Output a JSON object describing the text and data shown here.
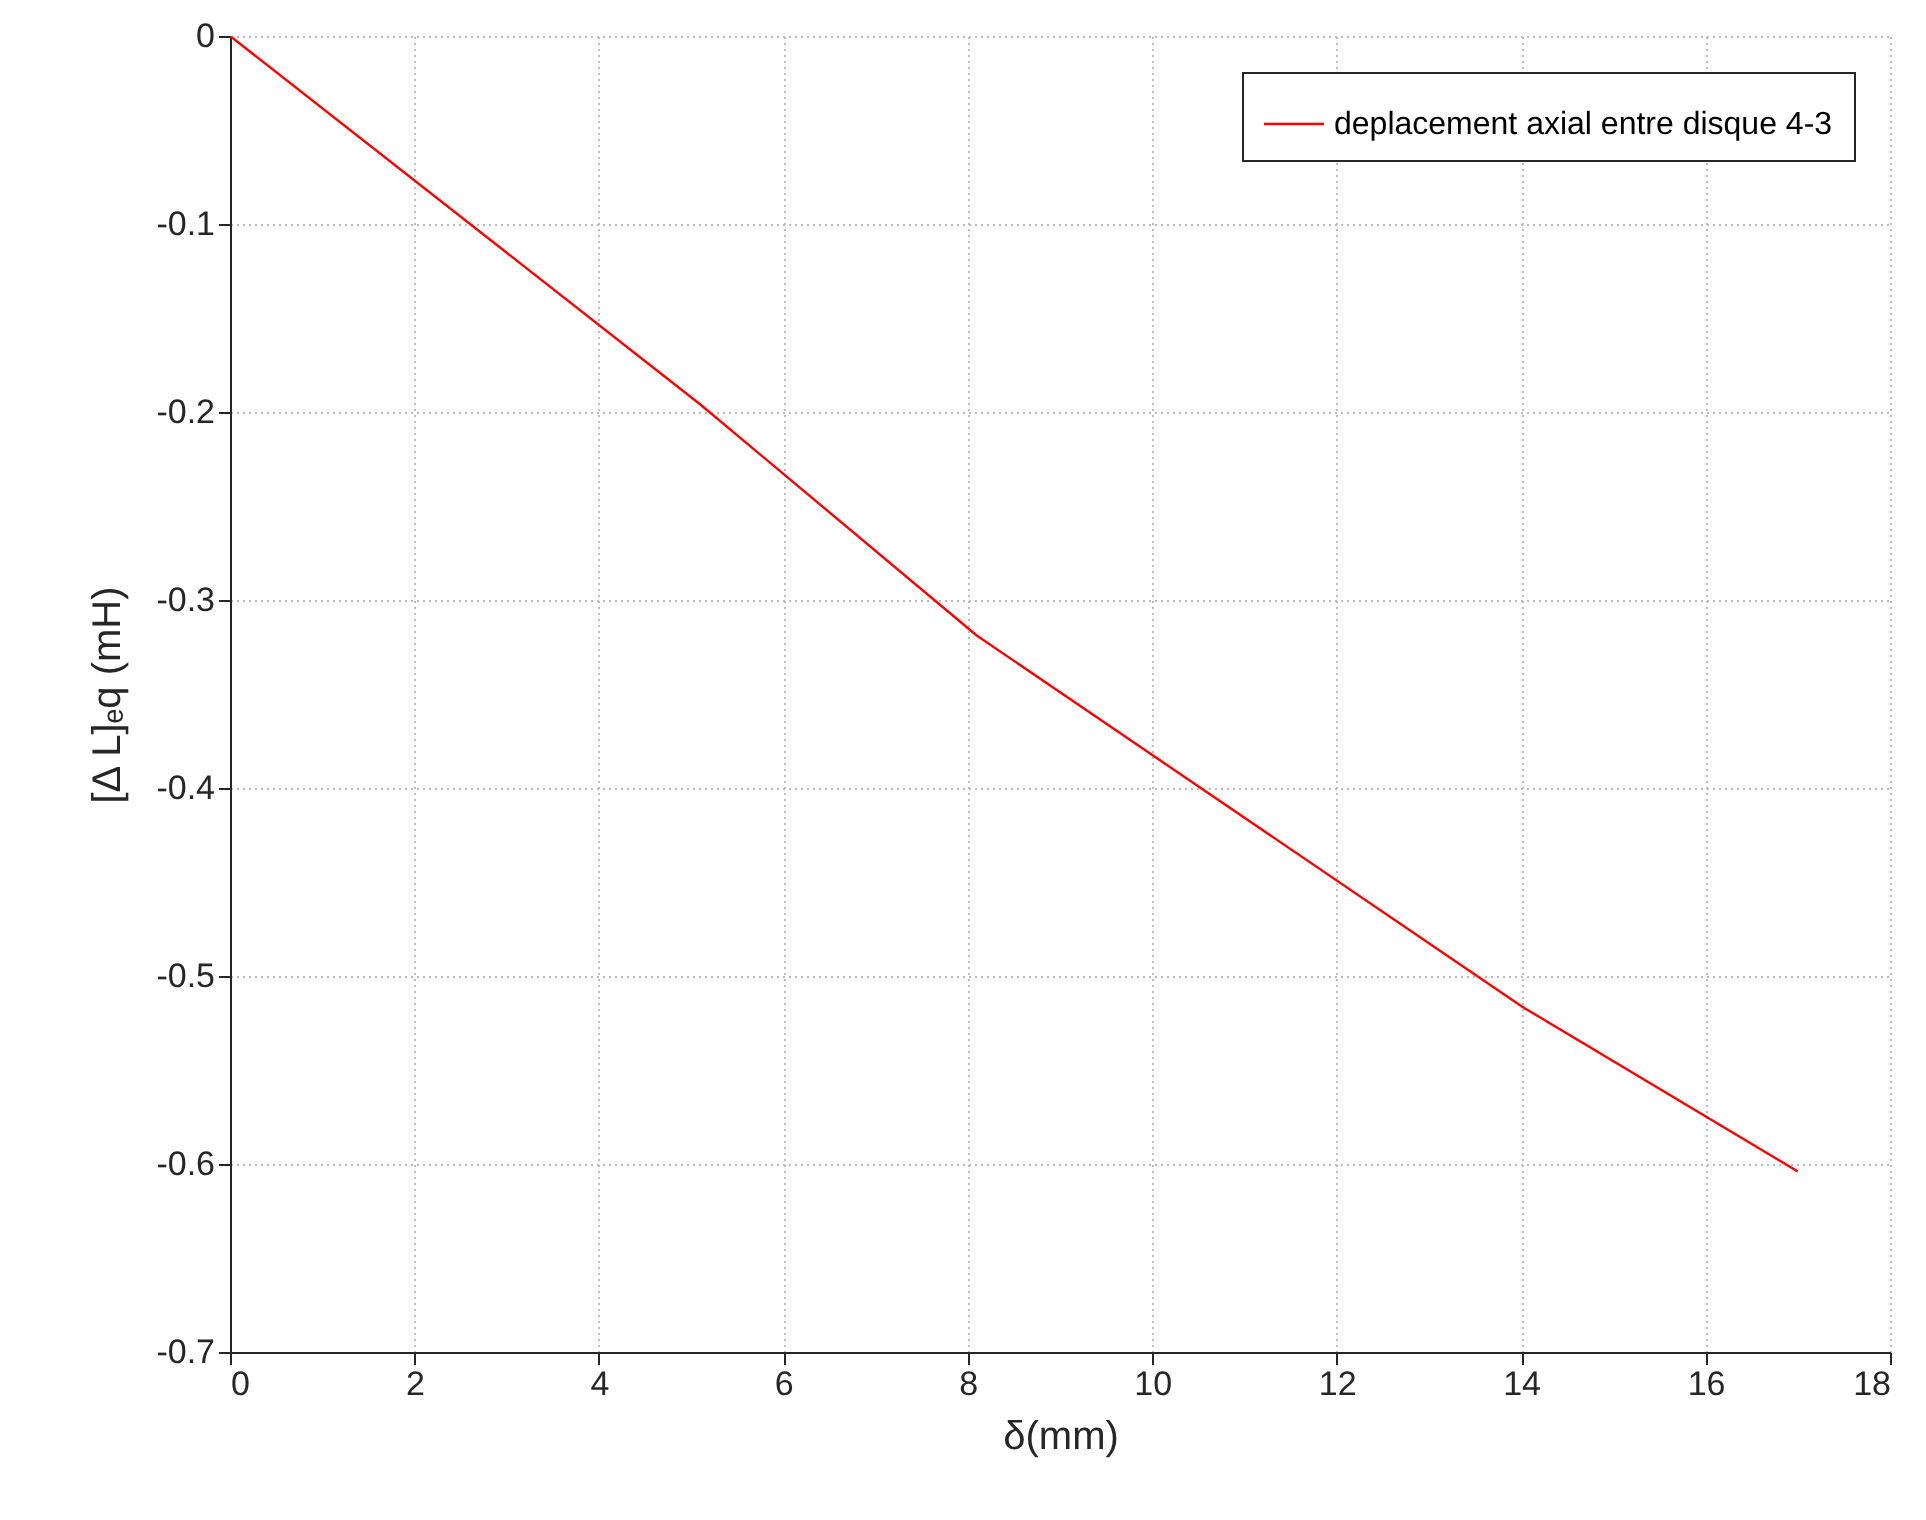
{
  "chart_data": {
    "type": "line",
    "xlabel": "δ(mm)",
    "ylabel": "[Δ L]ₑq (mH)",
    "x": [
      0,
      5.1,
      8.1,
      14,
      17
    ],
    "series": [
      {
        "name": "deplacement axial entre disque 4-3",
        "color": "#ff0000",
        "values": [
          0,
          -0.196,
          -0.319,
          -0.516,
          -0.604
        ]
      }
    ],
    "xlim": [
      0,
      18
    ],
    "xticks": [
      0,
      2,
      4,
      6,
      8,
      10,
      12,
      14,
      16,
      18
    ],
    "ylim": [
      -0.7,
      0
    ],
    "yticks": [
      -0.7,
      -0.6,
      -0.5,
      -0.4,
      -0.3,
      -0.2,
      -0.1,
      0
    ],
    "grid": true,
    "legend": "top right",
    "line_style": "solid",
    "marker": "none"
  }
}
